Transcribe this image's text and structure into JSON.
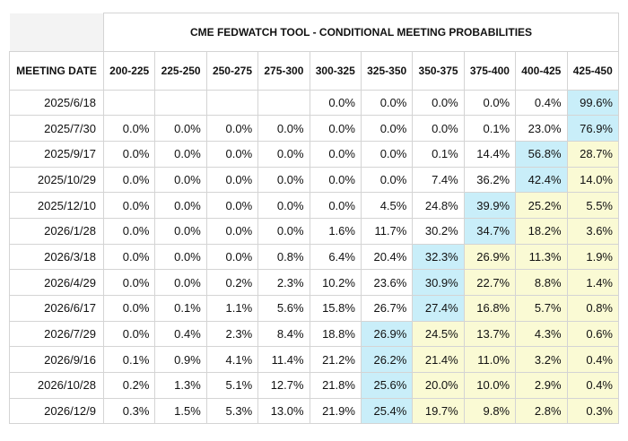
{
  "table": {
    "title": "CME FEDWATCH TOOL - CONDITIONAL MEETING PROBABILITIES",
    "columns": [
      "MEETING DATE",
      "200-225",
      "225-250",
      "250-275",
      "275-300",
      "300-325",
      "325-350",
      "350-375",
      "375-400",
      "400-425",
      "425-450"
    ],
    "rows": [
      [
        "2025/6/18",
        null,
        null,
        null,
        null,
        "0.0%",
        "0.0%",
        "0.0%",
        "0.0%",
        "0.4%",
        "99.6%"
      ],
      [
        "2025/7/30",
        "0.0%",
        "0.0%",
        "0.0%",
        "0.0%",
        "0.0%",
        "0.0%",
        "0.0%",
        "0.1%",
        "23.0%",
        "76.9%"
      ],
      [
        "2025/9/17",
        "0.0%",
        "0.0%",
        "0.0%",
        "0.0%",
        "0.0%",
        "0.0%",
        "0.1%",
        "14.4%",
        "56.8%",
        "28.7%"
      ],
      [
        "2025/10/29",
        "0.0%",
        "0.0%",
        "0.0%",
        "0.0%",
        "0.0%",
        "0.0%",
        "7.4%",
        "36.2%",
        "42.4%",
        "14.0%"
      ],
      [
        "2025/12/10",
        "0.0%",
        "0.0%",
        "0.0%",
        "0.0%",
        "0.0%",
        "4.5%",
        "24.8%",
        "39.9%",
        "25.2%",
        "5.5%"
      ],
      [
        "2026/1/28",
        "0.0%",
        "0.0%",
        "0.0%",
        "0.0%",
        "1.6%",
        "11.7%",
        "30.2%",
        "34.7%",
        "18.2%",
        "3.6%"
      ],
      [
        "2026/3/18",
        "0.0%",
        "0.0%",
        "0.0%",
        "0.8%",
        "6.4%",
        "20.4%",
        "32.3%",
        "26.9%",
        "11.3%",
        "1.9%"
      ],
      [
        "2026/4/29",
        "0.0%",
        "0.0%",
        "0.2%",
        "2.3%",
        "10.2%",
        "23.6%",
        "30.9%",
        "22.7%",
        "8.8%",
        "1.4%"
      ],
      [
        "2026/6/17",
        "0.0%",
        "0.1%",
        "1.1%",
        "5.6%",
        "15.8%",
        "26.7%",
        "27.4%",
        "16.8%",
        "5.7%",
        "0.8%"
      ],
      [
        "2026/7/29",
        "0.0%",
        "0.4%",
        "2.3%",
        "8.4%",
        "18.8%",
        "26.9%",
        "24.5%",
        "13.7%",
        "4.3%",
        "0.6%"
      ],
      [
        "2026/9/16",
        "0.1%",
        "0.9%",
        "4.1%",
        "11.4%",
        "21.2%",
        "26.2%",
        "21.4%",
        "11.0%",
        "3.2%",
        "0.4%"
      ],
      [
        "2026/10/28",
        "0.2%",
        "1.3%",
        "5.1%",
        "12.7%",
        "21.8%",
        "25.6%",
        "20.0%",
        "10.0%",
        "2.9%",
        "0.4%"
      ],
      [
        "2026/12/9",
        "0.3%",
        "1.5%",
        "5.3%",
        "13.0%",
        "21.9%",
        "25.4%",
        "19.7%",
        "9.8%",
        "2.8%",
        "0.3%"
      ]
    ]
  }
}
